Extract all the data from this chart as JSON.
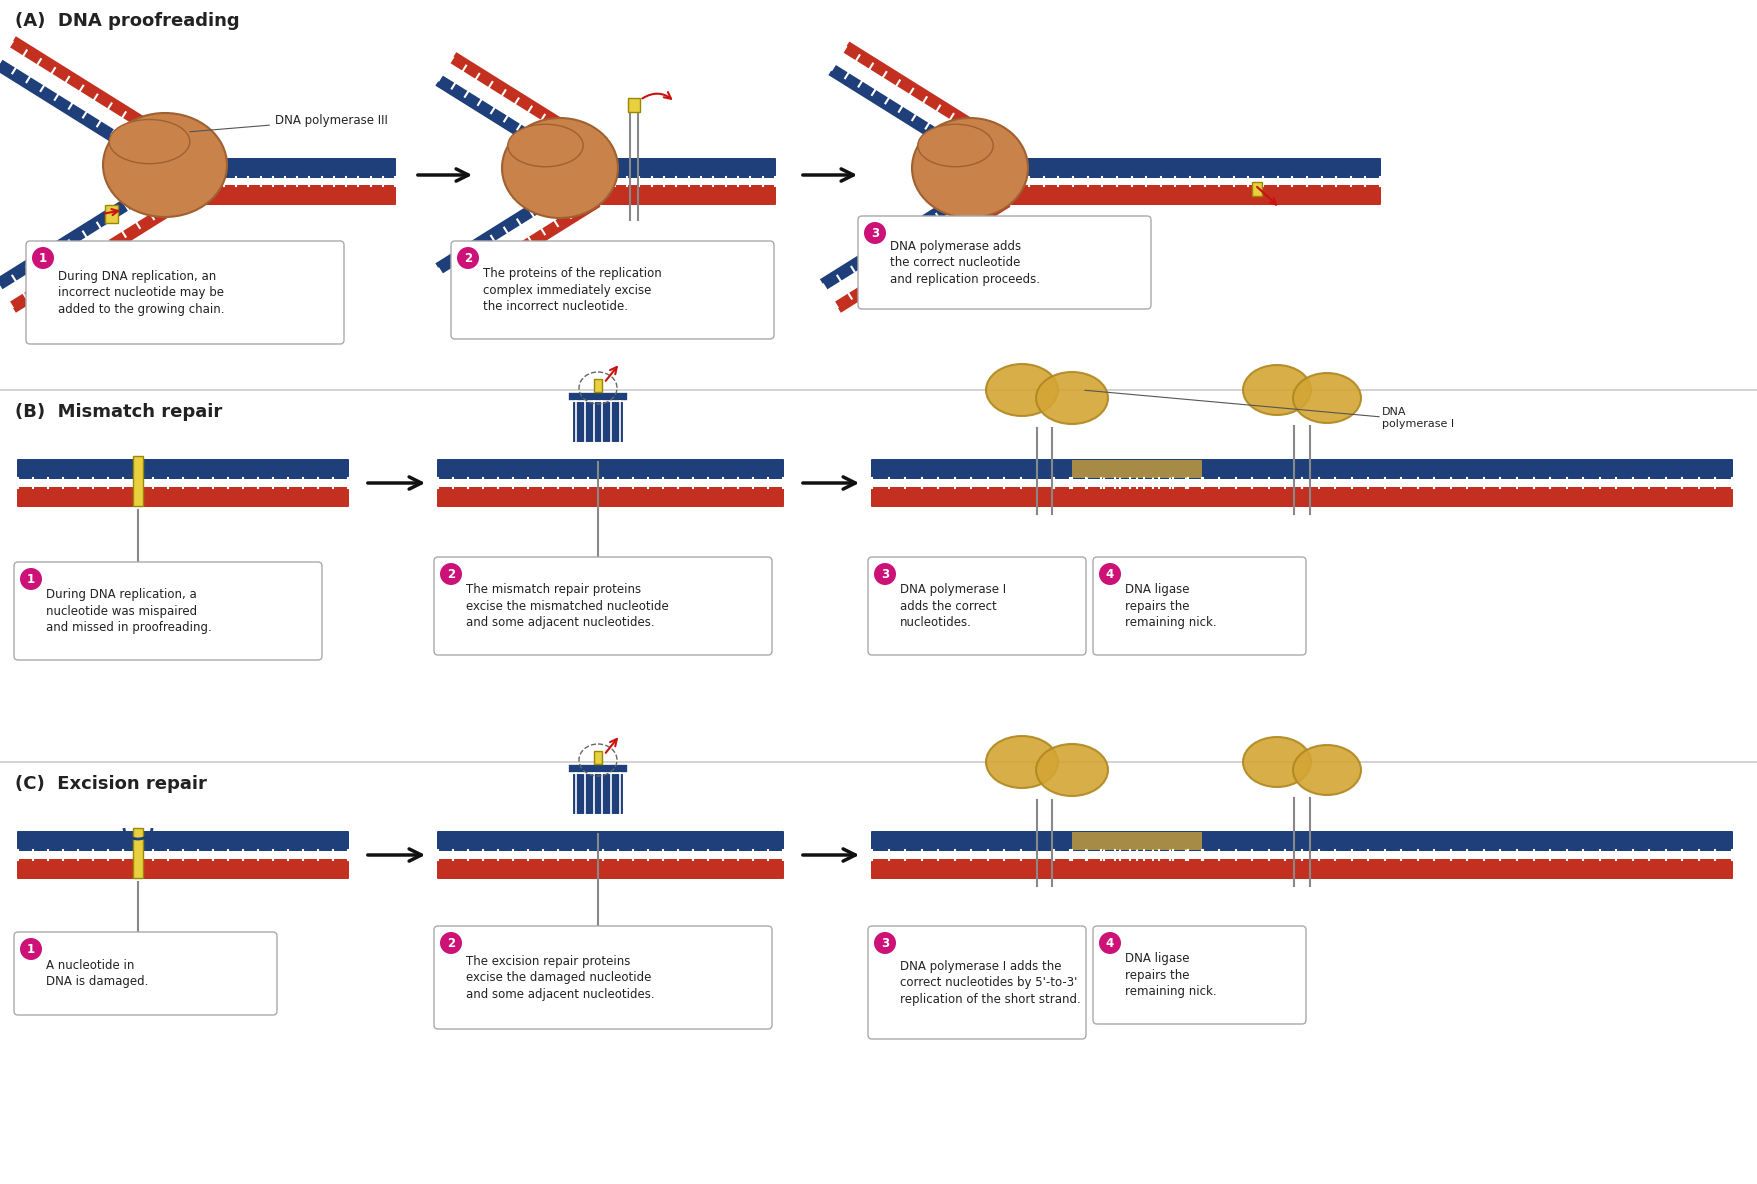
{
  "title_A": "(A)  DNA proofreading",
  "title_B": "(B)  Mismatch repair",
  "title_C": "(C)  Excision repair",
  "step_A1": "During DNA replication, an\nincorrect nucleotide may be\nadded to the growing chain.",
  "step_A2": "The proteins of the replication\ncomplex immediately excise\nthe incorrect nucleotide.",
  "step_A3": "DNA polymerase adds\nthe correct nucleotide\nand replication proceeds.",
  "step_B1": "During DNA replication, a\nnucleotide was mispaired\nand missed in proofreading.",
  "step_B2": "The mismatch repair proteins\nexcise the mismatched nucleotide\nand some adjacent nucleotides.",
  "step_B3": "DNA polymerase I\nadds the correct\nnucleotides.",
  "step_B4": "DNA ligase\nrepairs the\nremaining nick.",
  "step_C1": "A nucleotide in\nDNA is damaged.",
  "step_C2": "The excision repair proteins\nexcise the damaged nucleotide\nand some adjacent nucleotides.",
  "step_C3": "DNA polymerase I adds the\ncorrect nucleotides by 5'-to-3'\nreplication of the short strand.",
  "step_C4": "DNA ligase\nrepairs the\nremaining nick.",
  "label_pol_III": "DNA polymerase III",
  "label_pol_I": "DNA\npolymerase I",
  "dna_blue": "#1e3f7a",
  "dna_red": "#c43020",
  "dna_tick": "#ffffff",
  "poly_color": "#c8824a",
  "poly_edge": "#a06030",
  "gold_color": "#d4a535",
  "gold_edge": "#b08820",
  "yellow_nuc": "#e8d040",
  "step_pink": "#cc1177",
  "step_text": "#ffffff",
  "arrow_black": "#111111",
  "arrow_red": "#cc1111",
  "text_dark": "#222222",
  "box_edge": "#aaaaaa",
  "sep_line": "#cccccc",
  "bg": "#ffffff"
}
